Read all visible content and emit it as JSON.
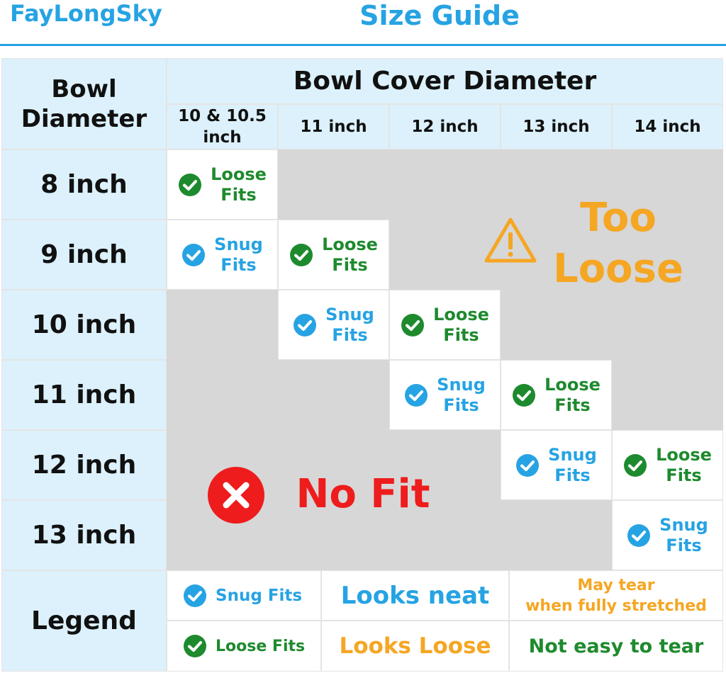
{
  "header": {
    "brand": "FayLongSky",
    "title": "Size Guide"
  },
  "table": {
    "corner_label": "Bowl\nDiameter",
    "cover_header": "Bowl Cover Diameter",
    "columns": [
      "10 & 10.5\ninch",
      "11 inch",
      "12 inch",
      "13 inch",
      "14 inch"
    ],
    "rows": [
      "8 inch",
      "9 inch",
      "10 inch",
      "11 inch",
      "12 inch",
      "13 inch"
    ],
    "fit_labels": {
      "snug": "Snug\nFits",
      "loose": "Loose\nFits"
    }
  },
  "zones": {
    "too_loose": "Too\nLoose",
    "no_fit": "No Fit"
  },
  "legend": {
    "label": "Legend",
    "snug_label": "Snug Fits",
    "loose_label": "Loose Fits",
    "snug_look": "Looks neat",
    "loose_look": "Looks Loose",
    "snug_durability": "May tear\nwhen fully stretched",
    "loose_durability": "Not easy to tear"
  },
  "colors": {
    "blue": "#26a3e3",
    "green": "#1e8a2e",
    "orange": "#f5a623",
    "red": "#ee1c1c",
    "gray": "#d7d7d7",
    "light_blue": "#dcf1fb"
  },
  "icons": {
    "snug": "blue-check-circle-icon",
    "loose": "green-check-circle-icon",
    "warning": "warning-triangle-icon",
    "no_fit": "red-x-circle-icon"
  }
}
